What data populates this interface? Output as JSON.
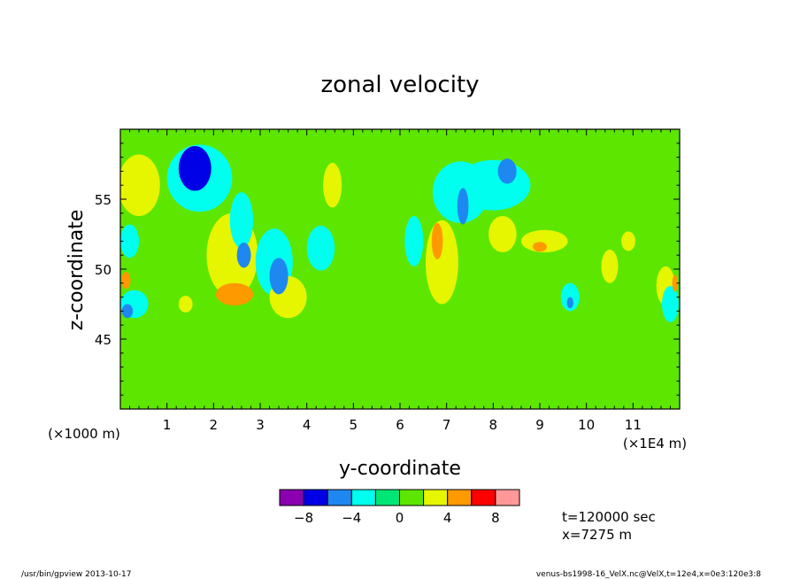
{
  "chart_data": {
    "type": "heatmap",
    "title": "zonal velocity",
    "xlabel": "y-coordinate",
    "ylabel": "z-coordinate",
    "x_unit_left": "(×1000 m)",
    "x_unit_right": "(×1E4 m)",
    "xlim": [
      0,
      12
    ],
    "ylim": [
      40,
      60
    ],
    "x_ticks": [
      "1",
      "2",
      "3",
      "4",
      "5",
      "6",
      "7",
      "8",
      "9",
      "10",
      "11"
    ],
    "y_ticks": [
      "45",
      "50",
      "55"
    ],
    "colorbar": {
      "levels": [
        -10,
        -8,
        -6,
        -4,
        -2,
        0,
        2,
        4,
        6,
        8,
        10
      ],
      "tick_labels": [
        "−8",
        "−4",
        "0",
        "4",
        "8"
      ],
      "colors": [
        "#8a00b0",
        "#0000e6",
        "#1e88f0",
        "#00ffee",
        "#00e676",
        "#5de600",
        "#e6f500",
        "#ff9900",
        "#ff0000",
        "#ff9999"
      ]
    },
    "background_value_color": "#5de600",
    "features": [
      {
        "y": 1.6,
        "z": 57.2,
        "value": -7,
        "rx": 0.35,
        "ry": 1.6
      },
      {
        "y": 1.7,
        "z": 56.5,
        "value": -3,
        "rx": 0.7,
        "ry": 2.4
      },
      {
        "y": 0.4,
        "z": 56.0,
        "value": 3,
        "rx": 0.45,
        "ry": 2.2
      },
      {
        "y": 2.4,
        "z": 51.0,
        "value": 3,
        "rx": 0.55,
        "ry": 3.0
      },
      {
        "y": 2.45,
        "z": 48.2,
        "value": 5,
        "rx": 0.4,
        "ry": 0.8
      },
      {
        "y": 2.65,
        "z": 51.0,
        "value": -6,
        "rx": 0.15,
        "ry": 0.9
      },
      {
        "y": 2.6,
        "z": 53.5,
        "value": -3,
        "rx": 0.25,
        "ry": 2.0
      },
      {
        "y": 3.4,
        "z": 49.5,
        "value": -6,
        "rx": 0.2,
        "ry": 1.3
      },
      {
        "y": 3.3,
        "z": 50.5,
        "value": -3,
        "rx": 0.4,
        "ry": 2.4
      },
      {
        "y": 3.6,
        "z": 48.0,
        "value": 3,
        "rx": 0.4,
        "ry": 1.5
      },
      {
        "y": 4.3,
        "z": 51.5,
        "value": -3,
        "rx": 0.3,
        "ry": 1.6
      },
      {
        "y": 4.55,
        "z": 56.0,
        "value": 3,
        "rx": 0.2,
        "ry": 1.6
      },
      {
        "y": 6.3,
        "z": 52.0,
        "value": -3,
        "rx": 0.2,
        "ry": 1.8
      },
      {
        "y": 7.3,
        "z": 55.5,
        "value": -3,
        "rx": 0.6,
        "ry": 2.2
      },
      {
        "y": 7.35,
        "z": 54.5,
        "value": -6,
        "rx": 0.12,
        "ry": 1.3
      },
      {
        "y": 8.3,
        "z": 57.0,
        "value": -6,
        "rx": 0.2,
        "ry": 0.9
      },
      {
        "y": 8.0,
        "z": 56.0,
        "value": -3,
        "rx": 0.8,
        "ry": 1.8
      },
      {
        "y": 6.9,
        "z": 50.5,
        "value": 3,
        "rx": 0.35,
        "ry": 3.0
      },
      {
        "y": 6.8,
        "z": 52.0,
        "value": 5,
        "rx": 0.12,
        "ry": 1.3
      },
      {
        "y": 8.2,
        "z": 52.5,
        "value": 3,
        "rx": 0.3,
        "ry": 1.3
      },
      {
        "y": 9.1,
        "z": 52.0,
        "value": 3,
        "rx": 0.5,
        "ry": 0.8
      },
      {
        "y": 9.0,
        "z": 51.6,
        "value": 5,
        "rx": 0.15,
        "ry": 0.35
      },
      {
        "y": 9.65,
        "z": 48.0,
        "value": -3,
        "rx": 0.2,
        "ry": 1.0
      },
      {
        "y": 9.65,
        "z": 47.6,
        "value": -6,
        "rx": 0.07,
        "ry": 0.4
      },
      {
        "y": 10.5,
        "z": 50.2,
        "value": 3,
        "rx": 0.18,
        "ry": 1.2
      },
      {
        "y": 11.7,
        "z": 48.8,
        "value": 3,
        "rx": 0.2,
        "ry": 1.4
      },
      {
        "y": 11.9,
        "z": 49.0,
        "value": 5,
        "rx": 0.06,
        "ry": 0.6
      },
      {
        "y": 11.8,
        "z": 47.5,
        "value": -3,
        "rx": 0.18,
        "ry": 1.3
      },
      {
        "y": 0.12,
        "z": 49.2,
        "value": 5,
        "rx": 0.1,
        "ry": 0.6
      },
      {
        "y": 0.15,
        "z": 47.0,
        "value": -6,
        "rx": 0.12,
        "ry": 0.5
      },
      {
        "y": 0.3,
        "z": 47.5,
        "value": -3,
        "rx": 0.3,
        "ry": 1.0
      },
      {
        "y": 0.2,
        "z": 52.0,
        "value": -3,
        "rx": 0.2,
        "ry": 1.2
      },
      {
        "y": 1.4,
        "z": 47.5,
        "value": 3,
        "rx": 0.15,
        "ry": 0.6
      },
      {
        "y": 10.9,
        "z": 52.0,
        "value": 3,
        "rx": 0.15,
        "ry": 0.7
      }
    ]
  },
  "info": {
    "time_text": "t=120000 sec",
    "x_text": "x=7275 m"
  },
  "footer": {
    "left": "/usr/bin/gpview  2013-10-17",
    "right": "venus-bs1998-16_VelX.nc@VelX,t=12e4,x=0e3:120e3:8"
  }
}
